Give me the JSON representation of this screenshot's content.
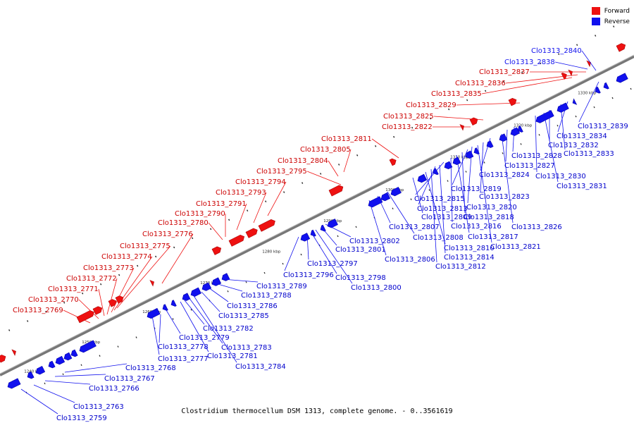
{
  "legend": {
    "forward_label": "Forward",
    "reverse_label": "Reverse",
    "forward_color": "#ee1111",
    "reverse_color": "#1111ee"
  },
  "caption": "Clostridium thermocellum DSM 1313, complete genome. - 0..3561619",
  "colors": {
    "forward": "#ee1111",
    "reverse": "#1111ee",
    "axis": "#888888",
    "leader": "#ee1111",
    "leader_rev": "#1111ee"
  },
  "axis_ticks": [
    "1240 kbp",
    "1250 kbp",
    "1260 kbp",
    "1270 kbp",
    "1280 kbp",
    "1290 kbp",
    "1300 kbp",
    "1310 kbp",
    "1320 kbp",
    "1330 kbp"
  ],
  "forward_genes": [
    "Clo1313_2769",
    "Clo1313_2770",
    "Clo1313_2771",
    "Clo1313_2772",
    "Clo1313_2773",
    "Clo1313_2774",
    "Clo1313_2775",
    "Clo1313_2776",
    "Clo1313_2780",
    "Clo1313_2790",
    "Clo1313_2791",
    "Clo1313_2793",
    "Clo1313_2794",
    "Clo1313_2795",
    "Clo1313_2804",
    "Clo1313_2805",
    "Clo1313_2811",
    "Clo1313_2822",
    "Clo1313_2825",
    "Clo1313_2829",
    "Clo1313_2835",
    "Clo1313_2836",
    "Clo1313_2837",
    "Clo1313_2838",
    "Clo1313_2840"
  ],
  "reverse_genes": [
    "Clo1313_2759",
    "Clo1313_2763",
    "Clo1313_2766",
    "Clo1313_2767",
    "Clo1313_2768",
    "Clo1313_2777",
    "Clo1313_2778",
    "Clo1313_2779",
    "Clo1313_2781",
    "Clo1313_2782",
    "Clo1313_2783",
    "Clo1313_2784",
    "Clo1313_2785",
    "Clo1313_2786",
    "Clo1313_2788",
    "Clo1313_2789",
    "Clo1313_2796",
    "Clo1313_2797",
    "Clo1313_2798",
    "Clo1313_2800",
    "Clo1313_2801",
    "Clo1313_2802",
    "Clo1313_2806",
    "Clo1313_2807",
    "Clo1313_2808",
    "Clo1313_2809",
    "Clo1313_2810",
    "Clo1313_2812",
    "Clo1313_2813",
    "Clo1313_2814",
    "Clo1313_2815",
    "Clo1313_2816",
    "Clo1313_2817",
    "Clo1313_2818",
    "Clo1313_2819",
    "Clo1313_2820",
    "Clo1313_2821",
    "Clo1313_2823",
    "Clo1313_2824",
    "Clo1313_2826",
    "Clo1313_2827",
    "Clo1313_2828",
    "Clo1313_2830",
    "Clo1313_2831",
    "Clo1313_2832",
    "Clo1313_2833",
    "Clo1313_2834",
    "Clo1313_2839"
  ]
}
